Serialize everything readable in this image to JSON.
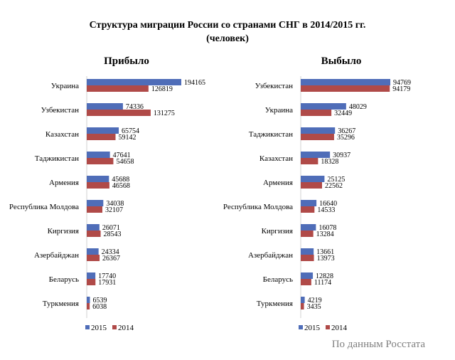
{
  "title_line1": "Структура миграции России со странами СНГ в 2014/2015 гг.",
  "title_line2": "(человек)",
  "source": "По данным Росстата",
  "colors": {
    "s2015": "#4f6db8",
    "s2014": "#b04a48"
  },
  "chart_data": [
    {
      "type": "bar",
      "orientation": "horizontal",
      "title": "Прибыло",
      "categories": [
        "Украина",
        "Узбекистан",
        "Казахстан",
        "Таджикистан",
        "Армения",
        "Республика Молдова",
        "Киргизия",
        "Азербайджан",
        "Беларусь",
        "Туркмения"
      ],
      "series": [
        {
          "name": "2015",
          "values": [
            194165,
            74336,
            65754,
            47641,
            45688,
            34038,
            26071,
            24334,
            17740,
            6539
          ]
        },
        {
          "name": "2014",
          "values": [
            126819,
            131275,
            59142,
            54658,
            46568,
            32107,
            28543,
            26367,
            17931,
            6038
          ]
        }
      ],
      "xlim": [
        0,
        194165
      ],
      "legend": "bottom"
    },
    {
      "type": "bar",
      "orientation": "horizontal",
      "title": "Выбыло",
      "categories": [
        "Узбекистан",
        "Украина",
        "Таджикистан",
        "Казахстан",
        "Армения",
        "Республика Молдова",
        "Киргизия",
        "Азербайджан",
        "Беларусь",
        "Туркмения"
      ],
      "series": [
        {
          "name": "2015",
          "values": [
            94769,
            48029,
            36267,
            30937,
            25125,
            16640,
            16078,
            13661,
            12828,
            4219
          ]
        },
        {
          "name": "2014",
          "values": [
            94179,
            32449,
            35296,
            18328,
            22562,
            14533,
            13284,
            13973,
            11174,
            3435
          ]
        }
      ],
      "xlim": [
        0,
        94769
      ],
      "legend": "bottom"
    }
  ]
}
